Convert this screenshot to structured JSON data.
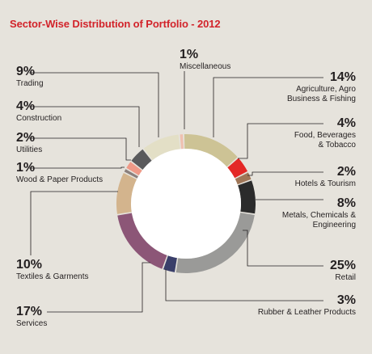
{
  "chart_data": {
    "type": "pie",
    "title": "Sector-Wise Distribution of Portfolio - 2012",
    "slices": [
      {
        "label": "Agriculture, Agro Business & Fishing",
        "lines": [
          "Agriculture, Agro",
          "Business & Fishing"
        ],
        "value": 14,
        "display": "14%",
        "color": "#cdc395"
      },
      {
        "label": "Food, Beverages & Tobacco",
        "lines": [
          "Food, Beverages",
          "& Tobacco"
        ],
        "value": 4,
        "display": "4%",
        "color": "#e42826"
      },
      {
        "label": "Hotels & Tourism",
        "lines": [
          "Hotels & Tourism"
        ],
        "value": 2,
        "display": "2%",
        "color": "#9f7657"
      },
      {
        "label": "Metals, Chemicals & Engineering",
        "lines": [
          "Metals, Chemicals &",
          "Engineering"
        ],
        "value": 8,
        "display": "8%",
        "color": "#2b2b2b"
      },
      {
        "label": "Retail",
        "lines": [
          "Retail"
        ],
        "value": 25,
        "display": "25%",
        "color": "#9a9a98"
      },
      {
        "label": "Rubber & Leather Products",
        "lines": [
          "Rubber & Leather Products"
        ],
        "value": 3,
        "display": "3%",
        "color": "#3a3f6a"
      },
      {
        "label": "Services",
        "lines": [
          "Services"
        ],
        "value": 17,
        "display": "17%",
        "color": "#8c5677"
      },
      {
        "label": "Textiles & Garments",
        "lines": [
          "Textiles & Garments"
        ],
        "value": 10,
        "display": "10%",
        "color": "#d3b48d"
      },
      {
        "label": "Wood & Paper Products",
        "lines": [
          "Wood & Paper Products"
        ],
        "value": 1,
        "display": "1%",
        "color": "#8a7f7c"
      },
      {
        "label": "Utilities",
        "lines": [
          "Utilities"
        ],
        "value": 2,
        "display": "2%",
        "color": "#ef9987"
      },
      {
        "label": "Construction",
        "lines": [
          "Construction"
        ],
        "value": 4,
        "display": "4%",
        "color": "#5a5a5c"
      },
      {
        "label": "Trading",
        "lines": [
          "Trading"
        ],
        "value": 9,
        "display": "9%",
        "color": "#e3dfc6"
      },
      {
        "label": "Miscellaneous",
        "lines": [
          "Miscellaneous"
        ],
        "value": 1,
        "display": "1%",
        "color": "#efc0b0"
      }
    ]
  }
}
